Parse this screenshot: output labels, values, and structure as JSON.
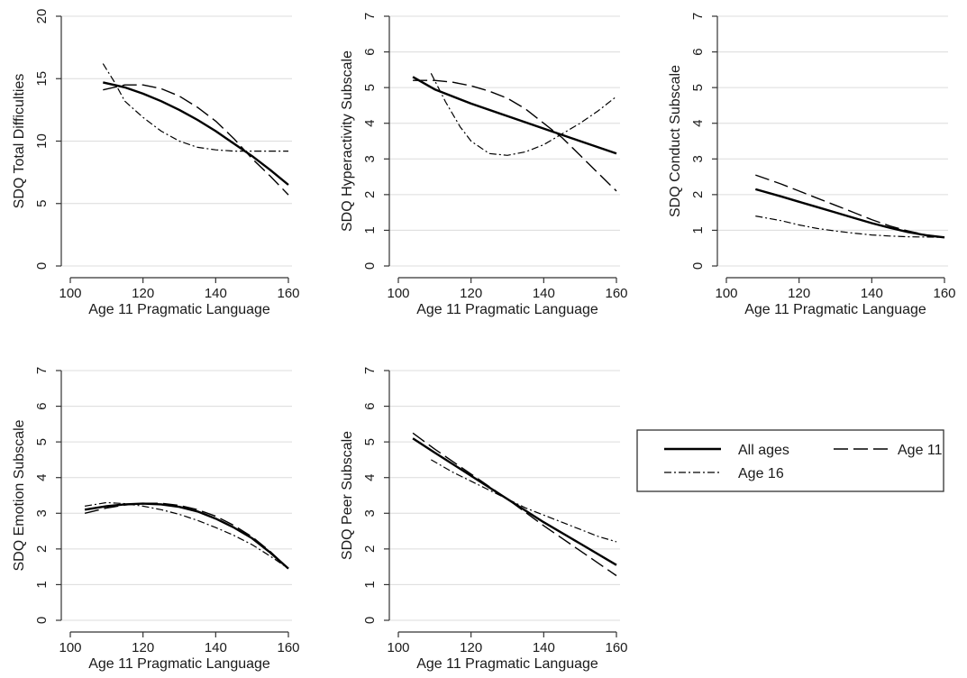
{
  "chart_data": [
    {
      "type": "line",
      "xlabel": "Age 11 Pragmatic Language",
      "ylabel": "SDQ Total Difficulties",
      "xlim": [
        100,
        160
      ],
      "ylim": [
        0,
        20
      ],
      "xticks": [
        100,
        120,
        140,
        160
      ],
      "yticks": [
        0,
        5,
        10,
        15,
        20
      ],
      "grid": true,
      "series": [
        {
          "name": "All ages",
          "x": [
            109,
            115,
            120,
            125,
            130,
            135,
            140,
            145,
            150,
            155,
            160
          ],
          "y": [
            14.7,
            14.3,
            13.8,
            13.2,
            12.5,
            11.7,
            10.8,
            9.8,
            8.8,
            7.7,
            6.5
          ]
        },
        {
          "name": "Age 11",
          "x": [
            109,
            115,
            120,
            125,
            130,
            135,
            140,
            145,
            150,
            155,
            160
          ],
          "y": [
            14.1,
            14.5,
            14.5,
            14.2,
            13.6,
            12.7,
            11.6,
            10.2,
            8.6,
            7.2,
            5.7
          ]
        },
        {
          "name": "Age 16",
          "x": [
            109,
            112,
            115,
            120,
            125,
            130,
            135,
            140,
            145,
            150,
            155,
            160
          ],
          "y": [
            16.2,
            14.8,
            13.2,
            11.9,
            10.8,
            10.0,
            9.5,
            9.3,
            9.2,
            9.2,
            9.2,
            9.2
          ]
        }
      ]
    },
    {
      "type": "line",
      "xlabel": "Age 11 Pragmatic Language",
      "ylabel": "SDQ Hyperactivity Subscale",
      "xlim": [
        100,
        160
      ],
      "ylim": [
        0,
        7
      ],
      "xticks": [
        100,
        120,
        140,
        160
      ],
      "yticks": [
        0,
        1,
        2,
        3,
        4,
        5,
        6,
        7
      ],
      "grid": true,
      "series": [
        {
          "name": "All ages",
          "x": [
            104,
            110,
            120,
            130,
            140,
            150,
            160
          ],
          "y": [
            5.3,
            4.95,
            4.55,
            4.2,
            3.85,
            3.5,
            3.15
          ]
        },
        {
          "name": "Age 11",
          "x": [
            104,
            110,
            115,
            120,
            125,
            130,
            135,
            140,
            145,
            150,
            155,
            160
          ],
          "y": [
            5.2,
            5.2,
            5.15,
            5.05,
            4.9,
            4.7,
            4.4,
            4.0,
            3.6,
            3.1,
            2.6,
            2.1
          ]
        },
        {
          "name": "Age 16",
          "x": [
            109,
            113,
            117,
            120,
            125,
            130,
            135,
            140,
            145,
            150,
            155,
            160
          ],
          "y": [
            5.4,
            4.6,
            3.9,
            3.5,
            3.15,
            3.1,
            3.2,
            3.4,
            3.7,
            4.0,
            4.35,
            4.75
          ]
        }
      ]
    },
    {
      "type": "line",
      "xlabel": "Age 11 Pragmatic Language",
      "ylabel": "SDQ Conduct Subscale",
      "xlim": [
        100,
        160
      ],
      "ylim": [
        0,
        7
      ],
      "xticks": [
        100,
        120,
        140,
        160
      ],
      "yticks": [
        0,
        1,
        2,
        3,
        4,
        5,
        6,
        7
      ],
      "grid": true,
      "series": [
        {
          "name": "All ages",
          "x": [
            108,
            115,
            120,
            125,
            130,
            135,
            140,
            145,
            150,
            155,
            160
          ],
          "y": [
            2.15,
            1.95,
            1.8,
            1.65,
            1.5,
            1.35,
            1.2,
            1.07,
            0.95,
            0.86,
            0.8
          ]
        },
        {
          "name": "Age 11",
          "x": [
            108,
            115,
            120,
            125,
            130,
            135,
            140,
            145,
            150,
            155,
            160
          ],
          "y": [
            2.55,
            2.3,
            2.1,
            1.9,
            1.7,
            1.5,
            1.3,
            1.12,
            0.98,
            0.87,
            0.8
          ]
        },
        {
          "name": "Age 16",
          "x": [
            108,
            115,
            120,
            125,
            130,
            135,
            140,
            145,
            150,
            155,
            160
          ],
          "y": [
            1.4,
            1.27,
            1.15,
            1.05,
            0.98,
            0.92,
            0.87,
            0.84,
            0.82,
            0.81,
            0.8
          ]
        }
      ]
    },
    {
      "type": "line",
      "xlabel": "Age 11 Pragmatic Language",
      "ylabel": "SDQ Emotion Subscale",
      "xlim": [
        100,
        160
      ],
      "ylim": [
        0,
        7
      ],
      "xticks": [
        100,
        120,
        140,
        160
      ],
      "yticks": [
        0,
        1,
        2,
        3,
        4,
        5,
        6,
        7
      ],
      "grid": true,
      "series": [
        {
          "name": "All ages",
          "x": [
            104,
            110,
            115,
            120,
            125,
            130,
            135,
            140,
            145,
            150,
            155,
            160
          ],
          "y": [
            3.1,
            3.2,
            3.25,
            3.27,
            3.25,
            3.18,
            3.05,
            2.85,
            2.6,
            2.3,
            1.9,
            1.45
          ]
        },
        {
          "name": "Age 11",
          "x": [
            104,
            110,
            115,
            120,
            125,
            130,
            135,
            140,
            145,
            150,
            155,
            160
          ],
          "y": [
            3.0,
            3.15,
            3.23,
            3.28,
            3.28,
            3.22,
            3.1,
            2.92,
            2.66,
            2.34,
            1.93,
            1.45
          ]
        },
        {
          "name": "Age 16",
          "x": [
            104,
            110,
            115,
            120,
            125,
            130,
            135,
            140,
            145,
            150,
            155,
            160
          ],
          "y": [
            3.2,
            3.3,
            3.27,
            3.2,
            3.1,
            2.97,
            2.8,
            2.6,
            2.38,
            2.12,
            1.8,
            1.45
          ]
        }
      ]
    },
    {
      "type": "line",
      "xlabel": "Age 11 Pragmatic Language",
      "ylabel": "SDQ Peer Subscale",
      "xlim": [
        100,
        160
      ],
      "ylim": [
        0,
        7
      ],
      "xticks": [
        100,
        120,
        140,
        160
      ],
      "yticks": [
        0,
        1,
        2,
        3,
        4,
        5,
        6,
        7
      ],
      "grid": true,
      "series": [
        {
          "name": "All ages",
          "x": [
            104,
            110,
            120,
            130,
            140,
            150,
            160
          ],
          "y": [
            5.1,
            4.7,
            4.05,
            3.4,
            2.75,
            2.15,
            1.55
          ]
        },
        {
          "name": "Age 11",
          "x": [
            104,
            110,
            120,
            130,
            140,
            150,
            160
          ],
          "y": [
            5.25,
            4.8,
            4.1,
            3.4,
            2.65,
            1.95,
            1.25
          ]
        },
        {
          "name": "Age 16",
          "x": [
            109,
            115,
            120,
            125,
            130,
            135,
            140,
            145,
            150,
            155,
            160
          ],
          "y": [
            4.5,
            4.15,
            3.9,
            3.65,
            3.4,
            3.15,
            2.95,
            2.75,
            2.55,
            2.35,
            2.2
          ]
        }
      ]
    }
  ],
  "legend": {
    "placement": "right of bottom row",
    "entries": [
      {
        "label": "All ages",
        "series": "All ages"
      },
      {
        "label": "Age 11",
        "series": "Age 11"
      },
      {
        "label": "Age 16",
        "series": "Age 16"
      }
    ]
  },
  "styles": {
    "All ages": {
      "color": "#000000",
      "dash": "solid"
    },
    "Age 11": {
      "color": "#000000",
      "dash": "long-dash"
    },
    "Age 16": {
      "color": "#000000",
      "dash": "dash-dot"
    }
  }
}
